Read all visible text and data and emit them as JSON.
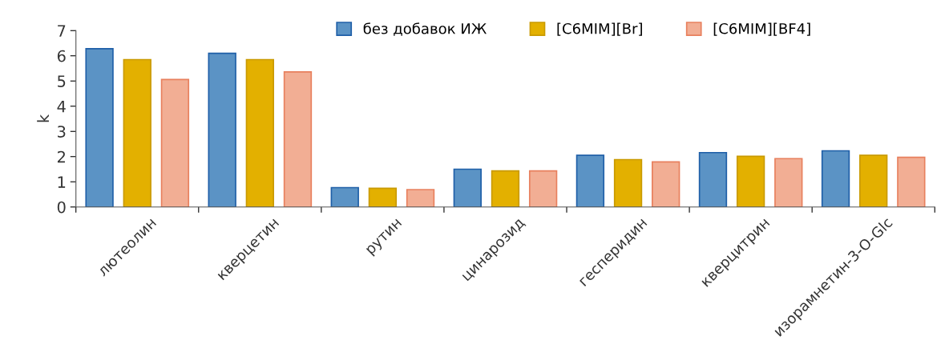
{
  "chart_data": {
    "type": "bar",
    "ylabel": "k",
    "categories": [
      "лютеолин",
      "кверцетин",
      "рутин",
      "цинарозид",
      "гесперидин",
      "кверцитрин",
      "изорамнетин-3-O-Glc"
    ],
    "series": [
      {
        "name": "без добавок ИЖ",
        "color": "#5b93c5",
        "values": [
          6.28,
          6.1,
          0.77,
          1.5,
          2.05,
          2.16,
          2.23
        ]
      },
      {
        "name": "[C6MIM][Br]",
        "color": "#e3b000",
        "values": [
          5.85,
          5.85,
          0.74,
          1.43,
          1.88,
          2.01,
          2.05
        ]
      },
      {
        "name": "[C6MIM][BF4]",
        "color": "#f2ae94",
        "values": [
          5.06,
          5.36,
          0.69,
          1.43,
          1.79,
          1.92,
          1.97
        ]
      }
    ],
    "ylim": [
      0,
      7
    ],
    "yticks": [
      0,
      1,
      2,
      3,
      4,
      5,
      6,
      7
    ],
    "grid": false,
    "legend": "top"
  }
}
